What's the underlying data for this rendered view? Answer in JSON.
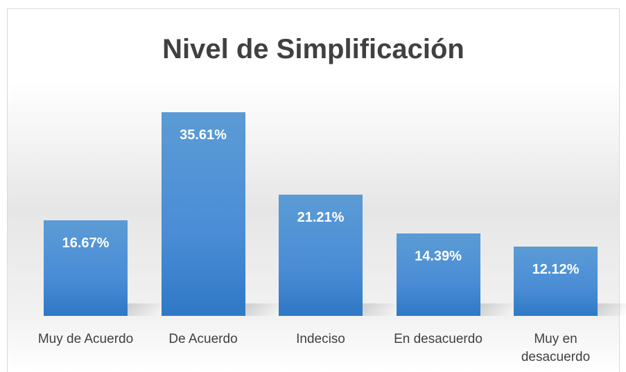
{
  "chart_data": {
    "type": "bar",
    "title": "Nivel de Simplificación",
    "categories": [
      "Muy de Acuerdo",
      "De Acuerdo",
      "Indeciso",
      "En desacuerdo",
      "Muy en desacuerdo"
    ],
    "values": [
      16.67,
      35.61,
      21.21,
      14.39,
      12.12
    ],
    "value_labels": [
      "16.67%",
      "35.61%",
      "21.21%",
      "14.39%",
      "12.12%"
    ],
    "color": "#4a8dd6"
  }
}
